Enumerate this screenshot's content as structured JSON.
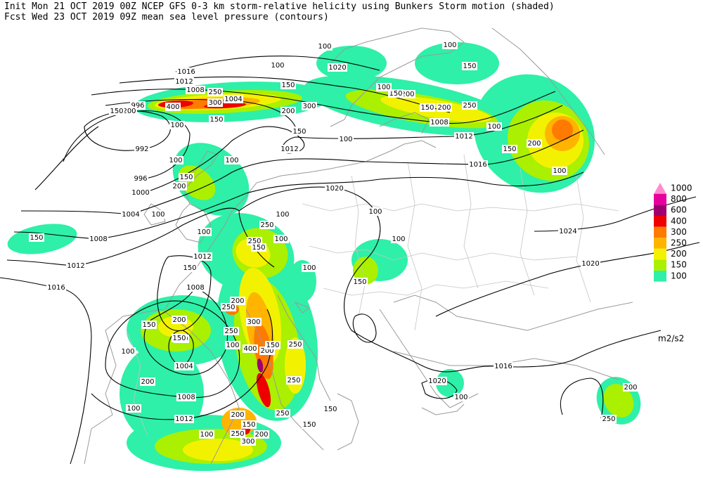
{
  "header": {
    "line1": "Init  Mon 21 OCT 2019 00Z  NCEP GFS 0-3 km storm-relative helicity using Bunkers Storm motion (shaded)",
    "line2": "Fcst Wed 23 OCT 2019 09Z  mean sea level pressure (contours)"
  },
  "legend": {
    "unit": "m2/s2",
    "levels": [
      {
        "value": 1000,
        "color": "#ff8ccc"
      },
      {
        "value": 800,
        "color": "#e6009e"
      },
      {
        "value": 600,
        "color": "#a0006e"
      },
      {
        "value": 400,
        "color": "#ee0000"
      },
      {
        "value": 300,
        "color": "#ff7a00"
      },
      {
        "value": 250,
        "color": "#ffb400"
      },
      {
        "value": 200,
        "color": "#f2f200"
      },
      {
        "value": 150,
        "color": "#aaf000"
      },
      {
        "value": 100,
        "color": "#2ef0a8"
      }
    ]
  },
  "isobar_labels": [
    "1016",
    "1012",
    "1008",
    "1004",
    "996",
    "992",
    "996",
    "1000",
    "1004",
    "1008",
    "1012",
    "1016",
    "1020",
    "1012",
    "1008",
    "1012",
    "1016",
    "1020",
    "1024",
    "1020",
    "1012",
    "1008",
    "1004",
    "1008",
    "1012",
    "1016",
    "1020"
  ],
  "helicity_labels": [
    "100",
    "100",
    "150",
    "250",
    "300",
    "300",
    "200",
    "150",
    "100",
    "100",
    "150",
    "200",
    "400",
    "150",
    "100",
    "100",
    "150",
    "200",
    "100",
    "150",
    "250",
    "100",
    "250",
    "150",
    "100",
    "100",
    "150",
    "100",
    "100",
    "100",
    "150",
    "200",
    "250",
    "300",
    "250",
    "150",
    "100",
    "400",
    "200",
    "150",
    "250",
    "250",
    "150",
    "150",
    "250",
    "200",
    "150",
    "250",
    "300",
    "200",
    "100",
    "150",
    "200",
    "150",
    "200",
    "100",
    "100",
    "100",
    "200",
    "250",
    "100",
    "150",
    "200",
    "100",
    "250",
    "200",
    "150",
    "200",
    "150",
    "100",
    "150",
    "100"
  ]
}
